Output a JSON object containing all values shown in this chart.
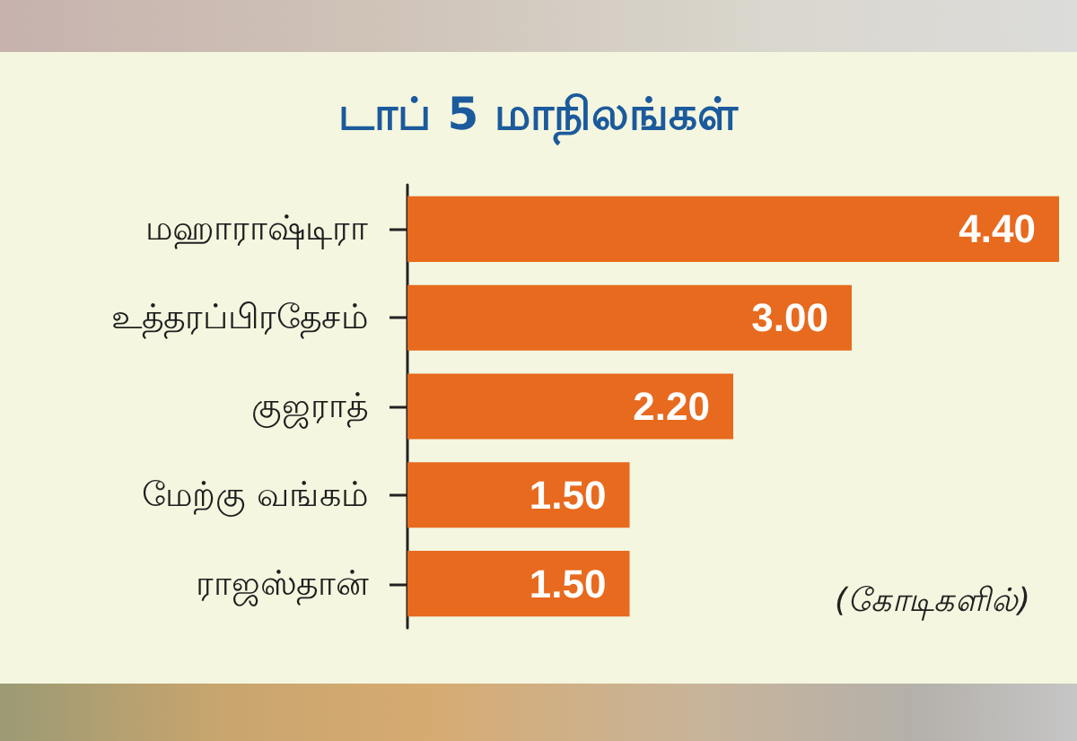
{
  "chart_data": {
    "type": "bar",
    "orientation": "horizontal",
    "title": "டாப் 5 மாநிலங்கள்",
    "categories": [
      "மஹாராஷ்டிரா",
      "உத்தரப்பிரதேசம்",
      "குஜராத்",
      "மேற்கு வங்கம்",
      "ராஜஸ்தான்"
    ],
    "values": [
      4.4,
      3.0,
      2.2,
      1.5,
      1.5
    ],
    "color": "#e76a1e",
    "value_labels": [
      "4.40",
      "3.00",
      "2.20",
      "1.50",
      "1.50"
    ],
    "annotations": [
      "(கோடிகளில்)"
    ],
    "tick_labels": "y"
  }
}
